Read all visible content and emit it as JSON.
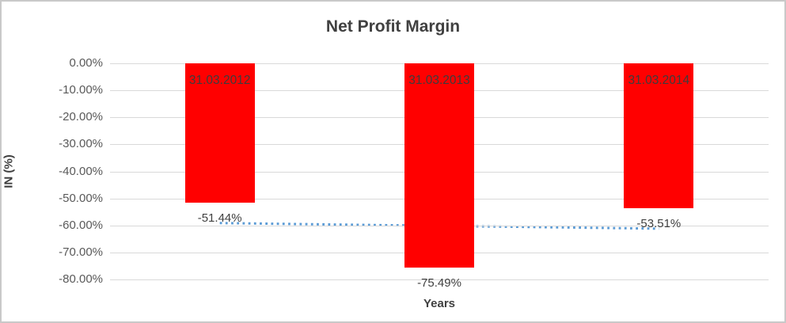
{
  "title": "Net Profit Margin",
  "axes": {
    "y_title": "IN (%)",
    "x_title": "Years"
  },
  "chart_data": {
    "type": "bar",
    "title": "Net Profit Margin",
    "xlabel": "Years",
    "ylabel": "IN (%)",
    "categories": [
      "31.03.2012",
      "31.03.2013",
      "31.03.2014"
    ],
    "values": [
      -51.44,
      -75.49,
      -53.51
    ],
    "value_labels": [
      "-51.44%",
      "-75.49%",
      "-53.51%"
    ],
    "ylim": [
      -80,
      0
    ],
    "y_tick_step": -10,
    "y_tick_labels": [
      "0.00%",
      "-10.00%",
      "-20.00%",
      "-30.00%",
      "-40.00%",
      "-50.00%",
      "-60.00%",
      "-70.00%",
      "-80.00%"
    ],
    "grid": true,
    "legend": "none",
    "trendline": {
      "type": "linear",
      "style": "dotted",
      "start_value": -59.12,
      "end_value": -61.19,
      "color": "#5b9bd5"
    },
    "colors": {
      "bar": "#ff0000",
      "gridline": "#d9d9d9",
      "title_text": "#404040",
      "tick_text": "#595959",
      "label_text": "#404040",
      "bar_label_text": "#3d3d3d",
      "frame_border": "#c9c9c9"
    }
  }
}
